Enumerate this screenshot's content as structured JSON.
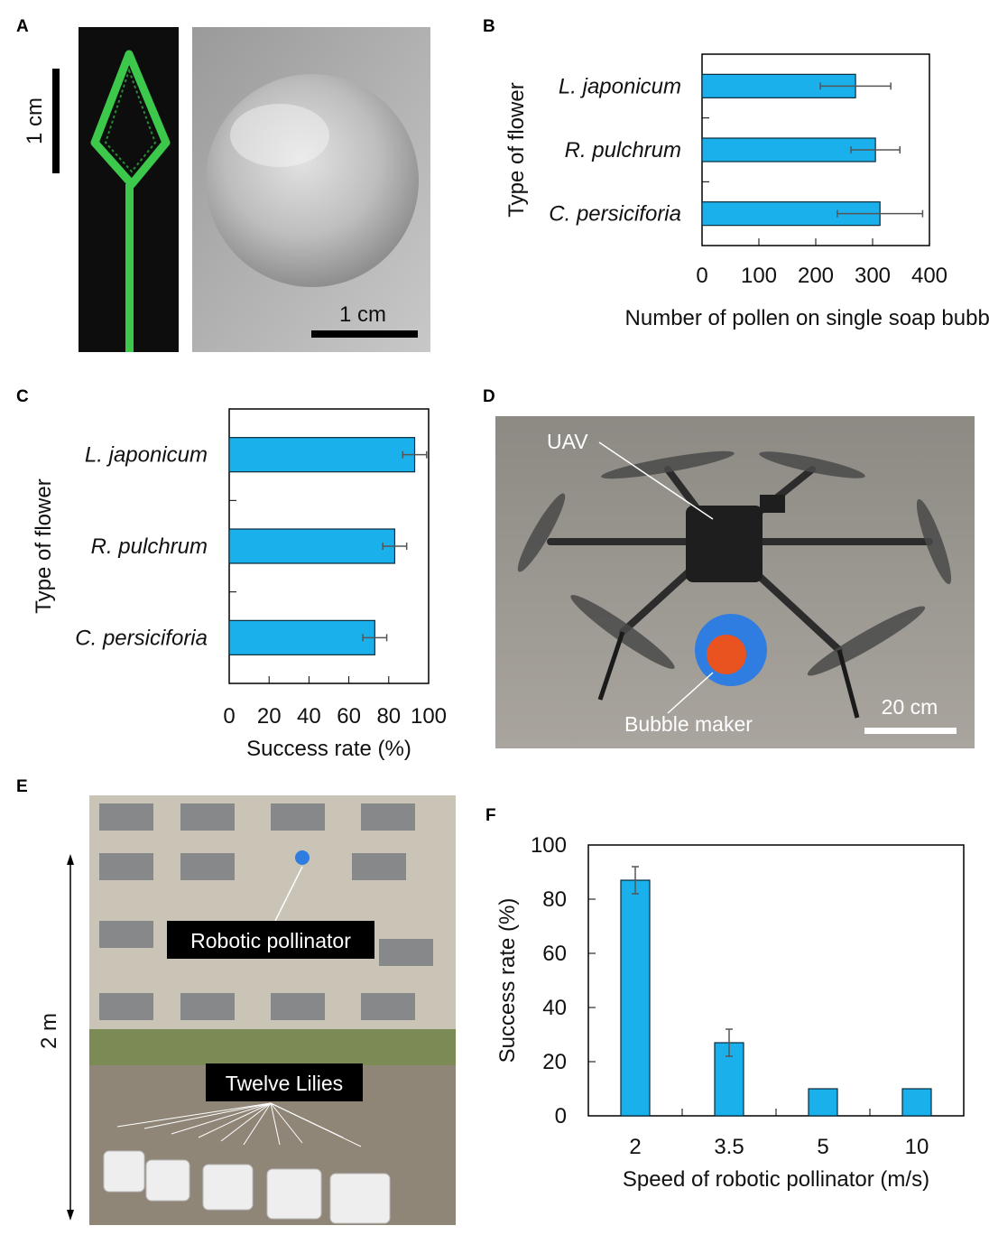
{
  "panels": {
    "A": {
      "label": "A",
      "scale_left": "1 cm",
      "scale_right": "1 cm"
    },
    "B": {
      "label": "B"
    },
    "C": {
      "label": "C"
    },
    "D": {
      "label": "D",
      "uav": "UAV",
      "bubble_maker": "Bubble maker",
      "scale": "20 cm"
    },
    "E": {
      "label": "E",
      "height": "2 m",
      "robot": "Robotic pollinator",
      "lilies": "Twelve Lilies"
    },
    "F": {
      "label": "F"
    }
  },
  "colors": {
    "bar": "#1ab0ec",
    "bar_edge": "#0a2a3a",
    "error": "#555555"
  },
  "chart_data": [
    {
      "id": "B",
      "type": "bar",
      "orientation": "horizontal",
      "categories": [
        "L. japonicum",
        "R. pulchrum",
        "C. persiciforia"
      ],
      "values": [
        270,
        305,
        313
      ],
      "errors": [
        62,
        43,
        75
      ],
      "xlabel": "Number of pollen on single soap bubble",
      "ylabel": "Type of flower",
      "xlim": [
        0,
        400
      ],
      "xticks": [
        "0",
        "100",
        "200",
        "300",
        "400"
      ],
      "grid": false
    },
    {
      "id": "C",
      "type": "bar",
      "orientation": "horizontal",
      "categories": [
        "L. japonicum",
        "R. pulchrum",
        "C. persiciforia"
      ],
      "values": [
        93,
        83,
        73
      ],
      "errors": [
        6,
        6,
        6
      ],
      "xlabel": "Success rate (%)",
      "ylabel": "Type of flower",
      "xlim": [
        0,
        100
      ],
      "xticks": [
        "0",
        "20",
        "40",
        "60",
        "80",
        "100"
      ],
      "grid": false
    },
    {
      "id": "F",
      "type": "bar",
      "orientation": "vertical",
      "categories": [
        "2",
        "3.5",
        "5",
        "10"
      ],
      "values": [
        87,
        27,
        10,
        10
      ],
      "errors": [
        5,
        5,
        0,
        0
      ],
      "xlabel": "Speed of robotic pollinator (m/s)",
      "ylabel": "Success rate (%)",
      "ylim": [
        0,
        100
      ],
      "yticks": [
        "0",
        "20",
        "40",
        "60",
        "80",
        "100"
      ],
      "grid": false
    }
  ]
}
